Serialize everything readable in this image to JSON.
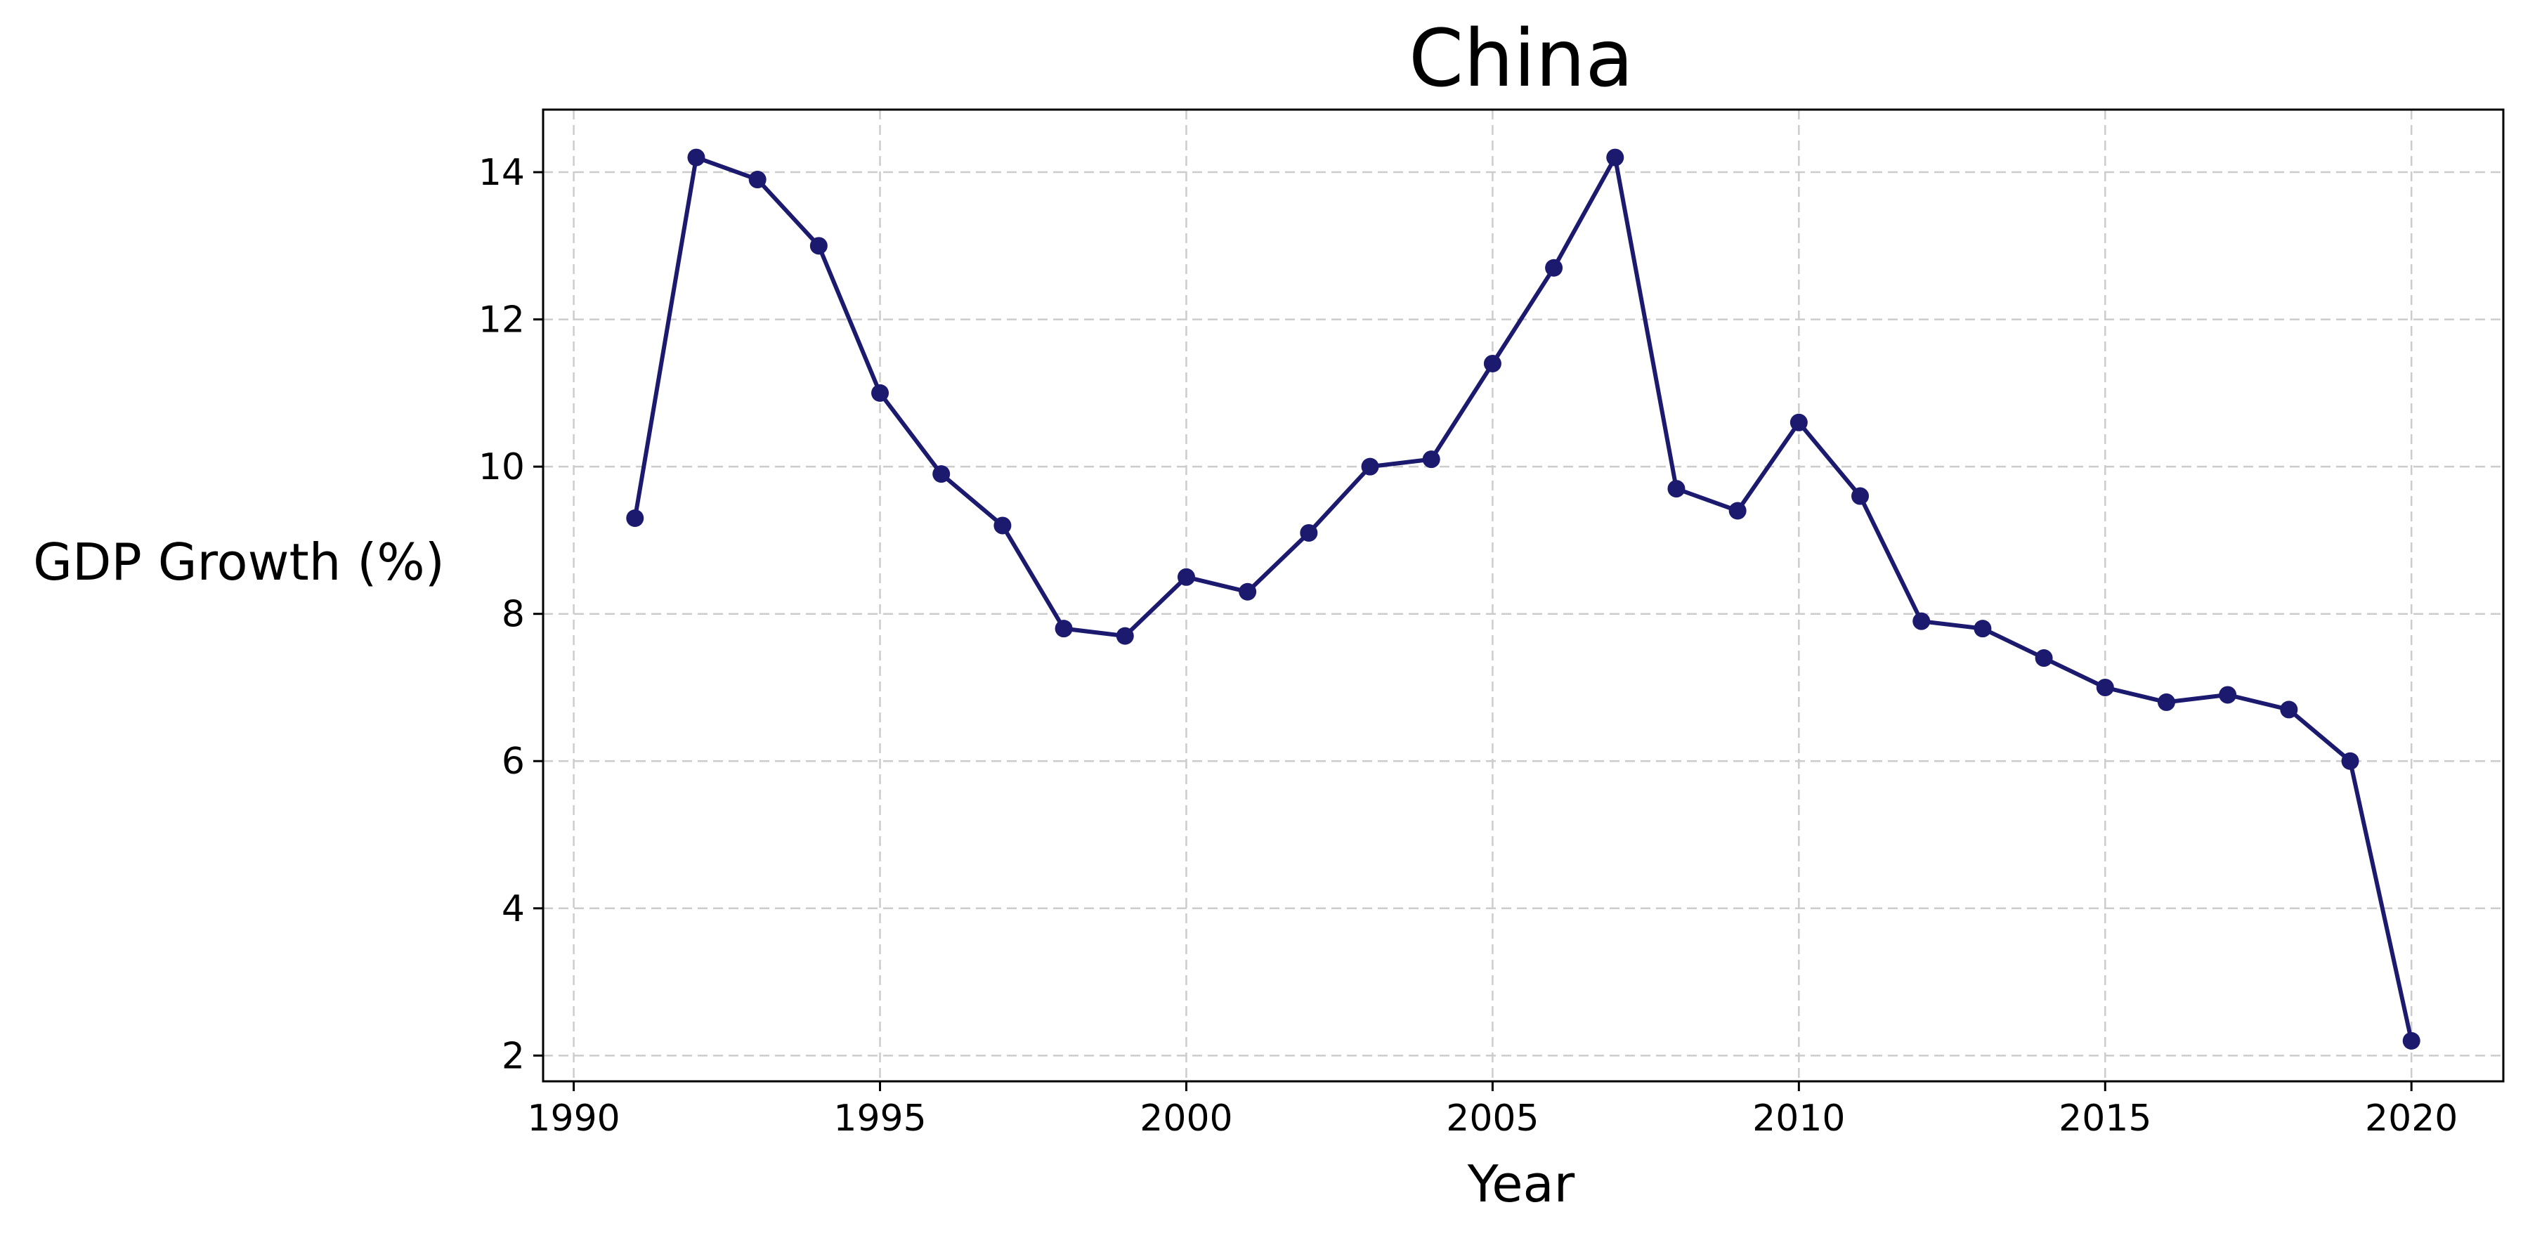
{
  "chart_data": {
    "type": "line",
    "title": "China",
    "xlabel": "Year",
    "ylabel": "GDP Growth (%)",
    "xlim": [
      1989.5,
      2021.5
    ],
    "ylim": [
      1.65,
      14.85
    ],
    "xticks": [
      1990,
      1995,
      2000,
      2005,
      2010,
      2015,
      2020
    ],
    "yticks": [
      2,
      4,
      6,
      8,
      10,
      12,
      14
    ],
    "grid": true,
    "grid_style": "dashed",
    "line_color": "#1c1a6e",
    "marker": "circle",
    "x": [
      1991,
      1992,
      1993,
      1994,
      1995,
      1996,
      1997,
      1998,
      1999,
      2000,
      2001,
      2002,
      2003,
      2004,
      2005,
      2006,
      2007,
      2008,
      2009,
      2010,
      2011,
      2012,
      2013,
      2014,
      2015,
      2016,
      2017,
      2018,
      2019,
      2020
    ],
    "y": [
      9.3,
      14.2,
      13.9,
      13.0,
      11.0,
      9.9,
      9.2,
      7.8,
      7.7,
      8.5,
      8.3,
      9.1,
      10.0,
      10.1,
      11.4,
      12.7,
      14.2,
      9.7,
      9.4,
      10.6,
      9.6,
      7.9,
      7.8,
      7.4,
      7.0,
      6.8,
      6.9,
      6.7,
      6.0,
      2.2
    ]
  }
}
